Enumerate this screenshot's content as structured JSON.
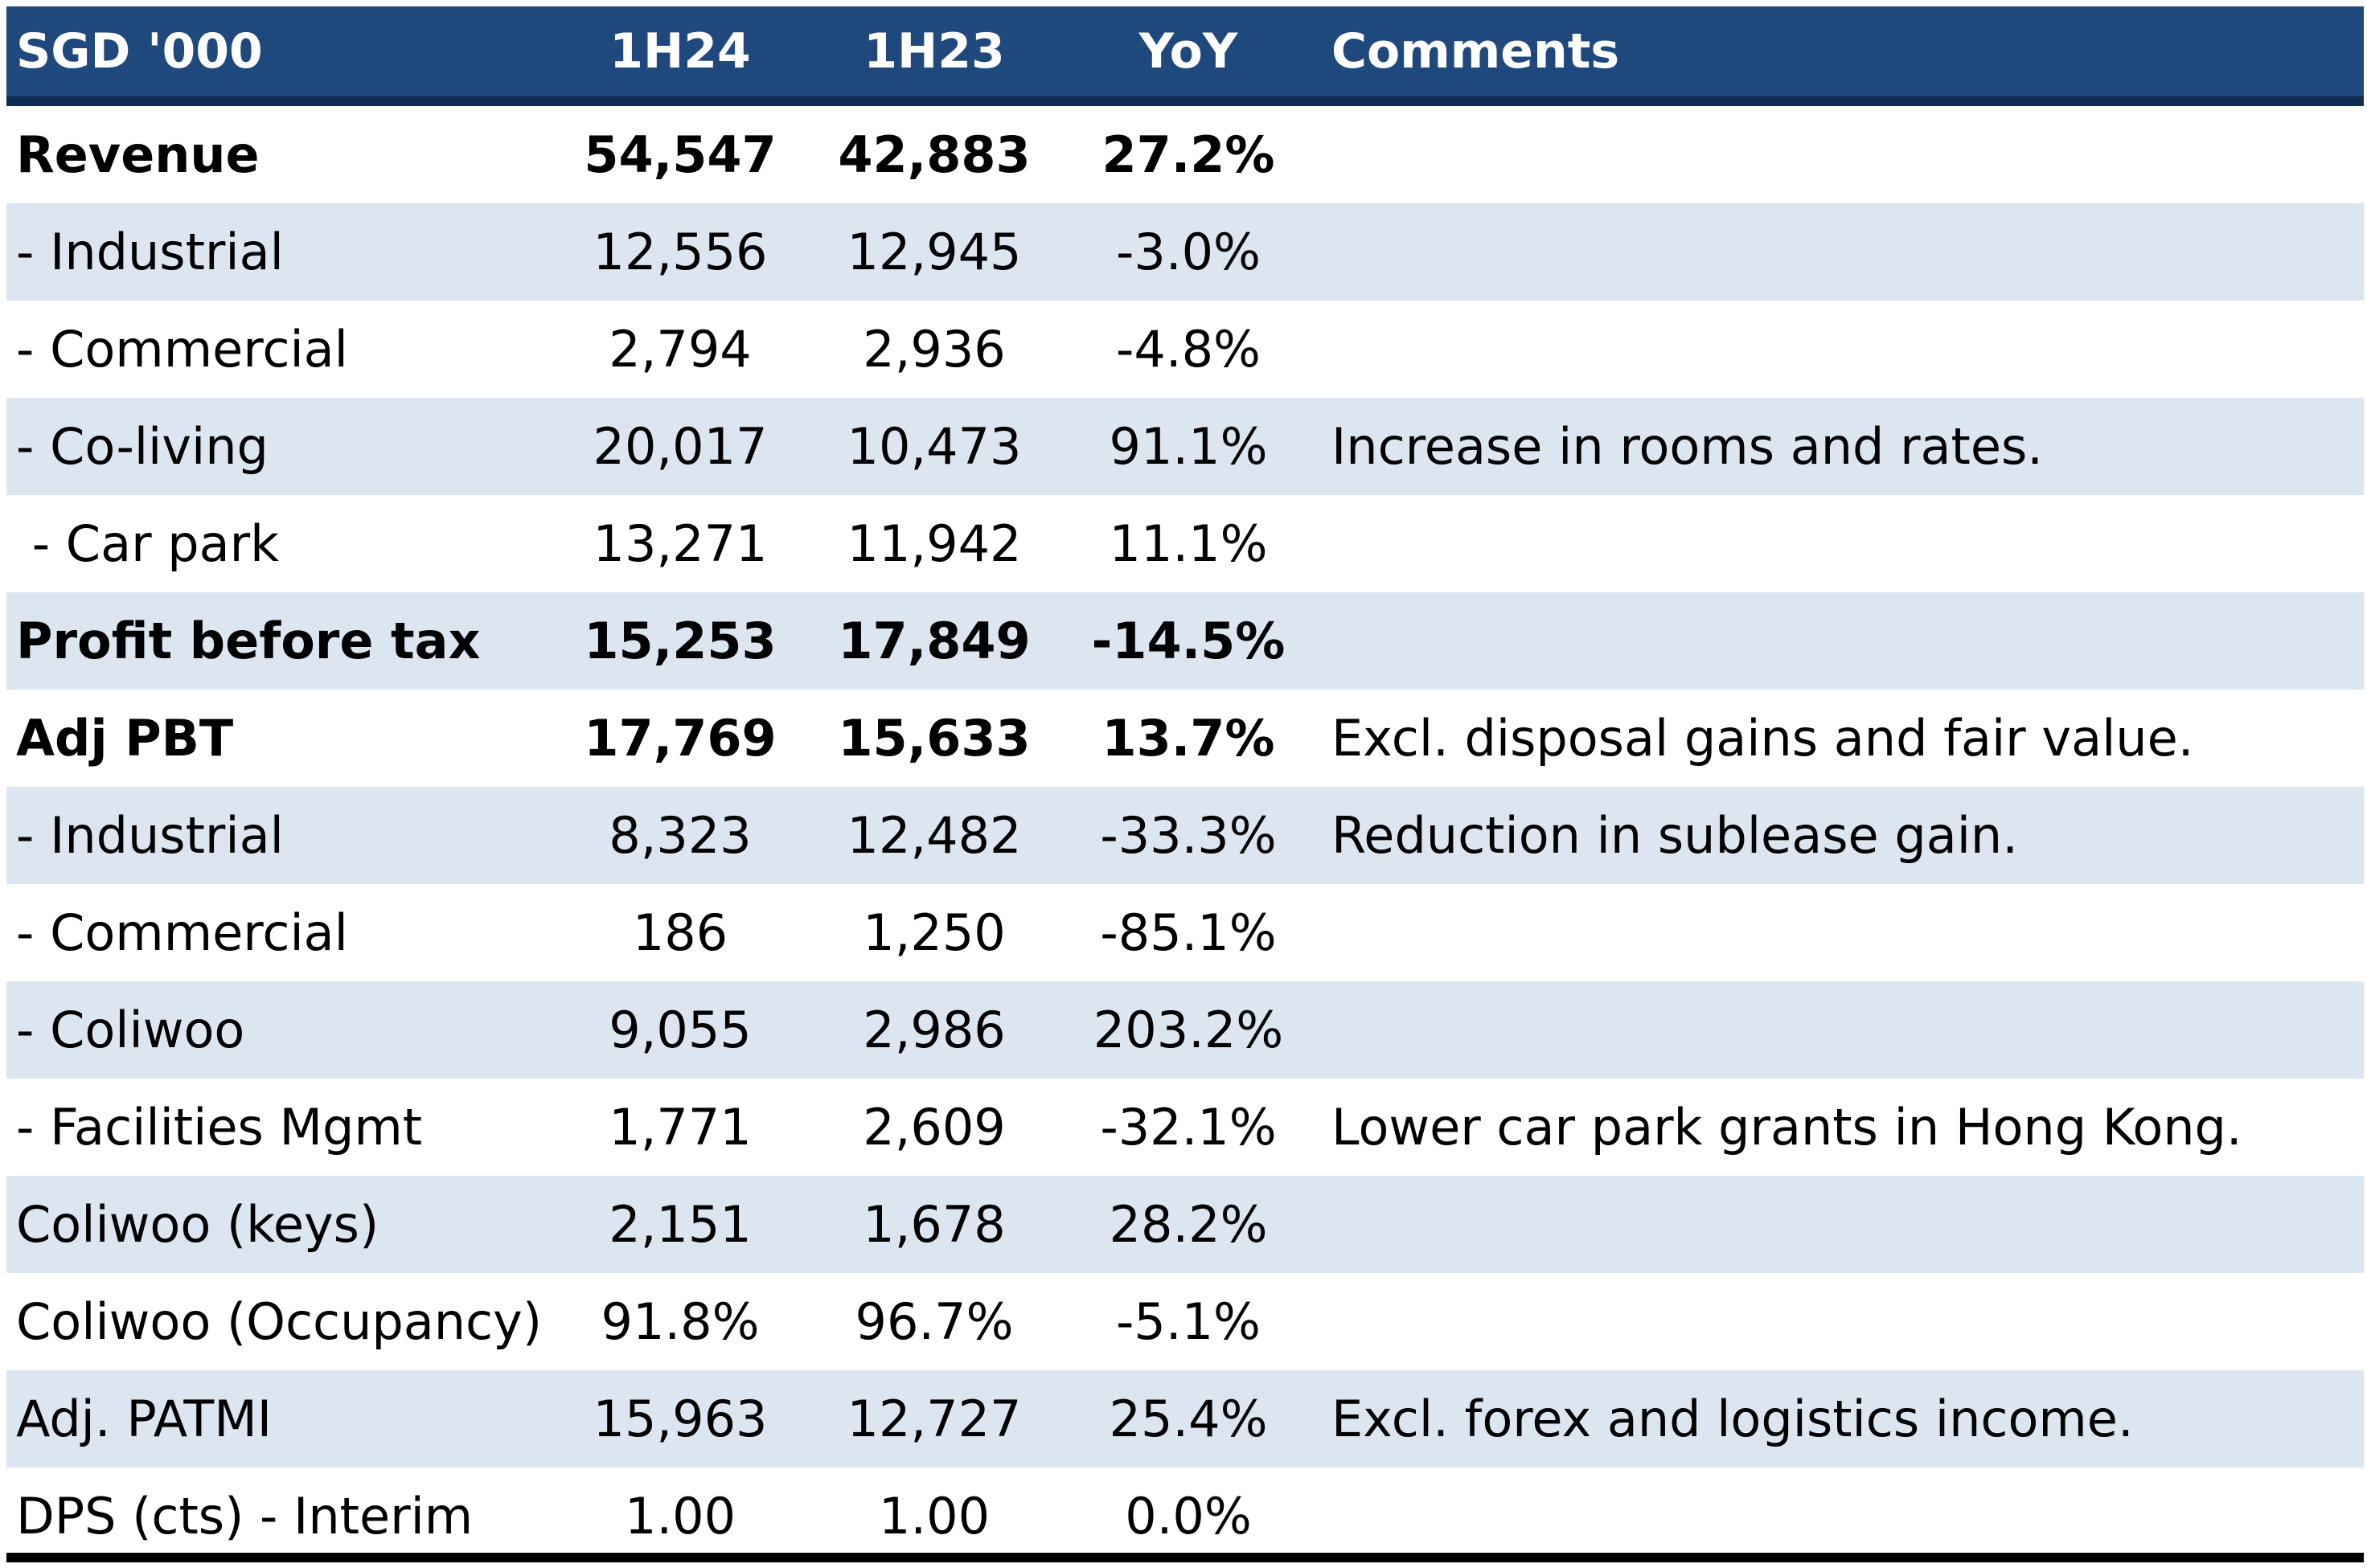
{
  "header": {
    "label": "SGD '000",
    "col1": "1H24",
    "col2": "1H23",
    "col3": "YoY",
    "col4": "Comments"
  },
  "rows": [
    {
      "label": "Revenue",
      "h1": "54,547",
      "h2": "42,883",
      "yoy": "27.2%",
      "comment": ""
    },
    {
      "label": "- Industrial",
      "h1": "12,556",
      "h2": "12,945",
      "yoy": "-3.0%",
      "comment": ""
    },
    {
      "label": "- Commercial",
      "h1": "2,794",
      "h2": "2,936",
      "yoy": "-4.8%",
      "comment": ""
    },
    {
      "label": "- Co-living",
      "h1": "20,017",
      "h2": "10,473",
      "yoy": "91.1%",
      "comment": "Increase in rooms and rates."
    },
    {
      "label": " - Car park",
      "h1": "13,271",
      "h2": "11,942",
      "yoy": "11.1%",
      "comment": ""
    },
    {
      "label": "Profit before tax",
      "h1": "15,253",
      "h2": "17,849",
      "yoy": "-14.5%",
      "comment": ""
    },
    {
      "label": "Adj PBT",
      "h1": "17,769",
      "h2": "15,633",
      "yoy": "13.7%",
      "comment": "Excl. disposal gains and fair value."
    },
    {
      "label": "- Industrial",
      "h1": "8,323",
      "h2": "12,482",
      "yoy": "-33.3%",
      "comment": "Reduction in sublease gain."
    },
    {
      "label": "- Commercial",
      "h1": "186",
      "h2": "1,250",
      "yoy": "-85.1%",
      "comment": ""
    },
    {
      "label": "- Coliwoo",
      "h1": "9,055",
      "h2": "2,986",
      "yoy": "203.2%",
      "comment": ""
    },
    {
      "label": "- Facilities Mgmt",
      "h1": "1,771",
      "h2": "2,609",
      "yoy": "-32.1%",
      "comment": "Lower car park grants in Hong Kong."
    },
    {
      "label": "Coliwoo (keys)",
      "h1": "2,151",
      "h2": "1,678",
      "yoy": "28.2%",
      "comment": ""
    },
    {
      "label": "Coliwoo (Occupancy)",
      "h1": "91.8%",
      "h2": "96.7%",
      "yoy": "-5.1%",
      "comment": ""
    },
    {
      "label": "Adj. PATMI",
      "h1": "15,963",
      "h2": "12,727",
      "yoy": "25.4%",
      "comment": "Excl. forex and logistics income."
    },
    {
      "label": "DPS (cts) - Interim",
      "h1": "1.00",
      "h2": "1.00",
      "yoy": "0.0%",
      "comment": ""
    }
  ],
  "colors": {
    "header_bg": "#1f497d",
    "header_text": "#ffffff",
    "shaded_row": "#dce6f1"
  }
}
